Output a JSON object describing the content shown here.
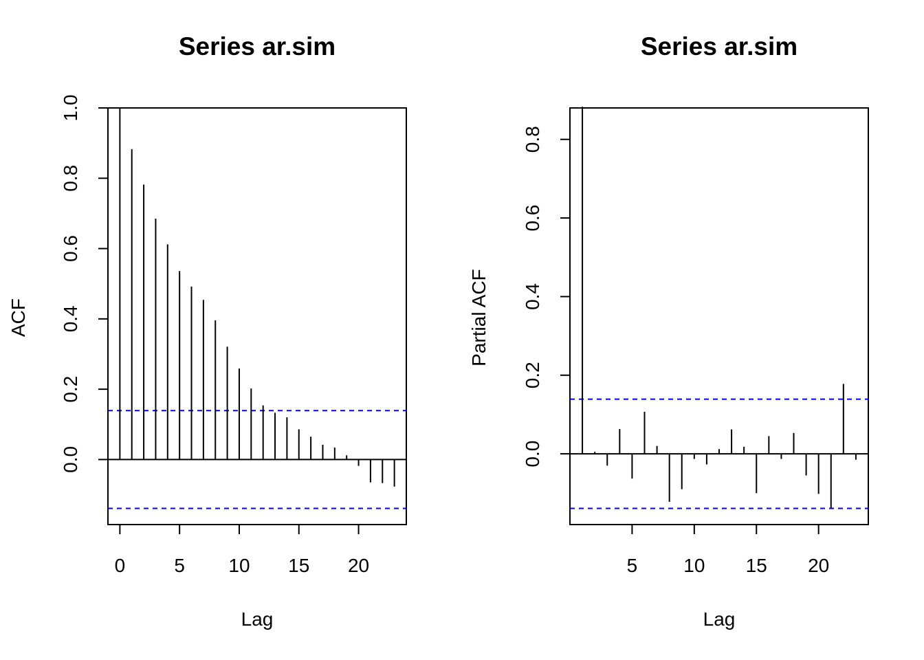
{
  "chart_data": [
    {
      "type": "bar",
      "style": "spikes",
      "title": "Series  ar.sim",
      "xlabel": "Lag",
      "ylabel": "ACF",
      "xlim": [
        -1,
        24
      ],
      "ylim": [
        -0.185,
        1.0
      ],
      "x_ticks": [
        0,
        5,
        10,
        15,
        20
      ],
      "y_ticks": [
        0.0,
        0.2,
        0.4,
        0.6,
        0.8,
        1.0
      ],
      "y_tick_labels": [
        "0.0",
        "0.2",
        "0.4",
        "0.6",
        "0.8",
        "1.0"
      ],
      "lags": [
        0,
        1,
        2,
        3,
        4,
        5,
        6,
        7,
        8,
        9,
        10,
        11,
        12,
        13,
        14,
        15,
        16,
        17,
        18,
        19,
        20,
        21,
        22,
        23
      ],
      "values": [
        1.0,
        0.883,
        0.782,
        0.685,
        0.612,
        0.536,
        0.492,
        0.454,
        0.396,
        0.321,
        0.259,
        0.202,
        0.154,
        0.133,
        0.12,
        0.086,
        0.065,
        0.042,
        0.034,
        0.012,
        -0.018,
        -0.065,
        -0.067,
        -0.077
      ],
      "confidence_bounds": [
        0.139,
        -0.139
      ],
      "bound_color": "#0000ff",
      "grid": false,
      "legend": "none"
    },
    {
      "type": "bar",
      "style": "spikes",
      "title": "Series  ar.sim",
      "xlabel": "Lag",
      "ylabel": "Partial ACF",
      "xlim": [
        0,
        24
      ],
      "ylim": [
        -0.18,
        0.88
      ],
      "x_ticks": [
        5,
        10,
        15,
        20
      ],
      "y_ticks": [
        0.0,
        0.2,
        0.4,
        0.6,
        0.8
      ],
      "y_tick_labels": [
        "0.0",
        "0.2",
        "0.4",
        "0.6",
        "0.8"
      ],
      "lags": [
        1,
        2,
        3,
        4,
        5,
        6,
        7,
        8,
        9,
        10,
        11,
        12,
        13,
        14,
        15,
        16,
        17,
        18,
        19,
        20,
        21,
        22,
        23
      ],
      "values": [
        0.883,
        0.005,
        -0.03,
        0.063,
        -0.063,
        0.107,
        0.02,
        -0.122,
        -0.09,
        -0.013,
        -0.027,
        0.012,
        0.062,
        0.018,
        -0.1,
        0.045,
        -0.013,
        0.053,
        -0.055,
        -0.102,
        -0.138,
        0.178,
        -0.015
      ],
      "confidence_bounds": [
        0.139,
        -0.139
      ],
      "bound_color": "#0000ff",
      "grid": false,
      "legend": "none"
    }
  ]
}
